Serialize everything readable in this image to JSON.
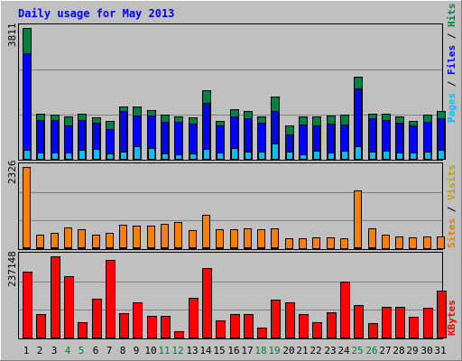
{
  "chart_data": [
    {
      "type": "bar",
      "title": "Daily usage for May 2013",
      "categories": [
        "1",
        "2",
        "3",
        "4",
        "5",
        "6",
        "7",
        "8",
        "9",
        "10",
        "11",
        "12",
        "13",
        "14",
        "15",
        "16",
        "17",
        "18",
        "19",
        "20",
        "21",
        "22",
        "23",
        "24",
        "25",
        "26",
        "27",
        "28",
        "29",
        "30",
        "31"
      ],
      "weekend_days": [
        "4",
        "5",
        "11",
        "12",
        "18",
        "19",
        "25",
        "26"
      ],
      "ymax_label": "3811",
      "ymax": 3811,
      "side_label": [
        "Pages",
        "Files",
        "Hits"
      ],
      "series": [
        {
          "name": "Hits",
          "color": "#008040",
          "values": [
            3811,
            1330,
            1300,
            1260,
            1340,
            1220,
            1130,
            1530,
            1540,
            1430,
            1300,
            1240,
            1220,
            2000,
            1130,
            1450,
            1420,
            1260,
            1840,
            1000,
            1260,
            1250,
            1290,
            1300,
            2400,
            1320,
            1340,
            1260,
            1120,
            1300,
            1420
          ]
        },
        {
          "name": "Files",
          "color": "#0000ff",
          "values": [
            3070,
            1140,
            1150,
            1000,
            1150,
            1070,
            880,
            1400,
            1280,
            1290,
            1100,
            1100,
            1040,
            1650,
            1000,
            1260,
            1200,
            1080,
            1420,
            730,
            1020,
            1000,
            1050,
            1030,
            2050,
            1200,
            1140,
            1080,
            1000,
            1100,
            1200
          ]
        },
        {
          "name": "Pages",
          "color": "#00c0ff",
          "values": [
            300,
            200,
            220,
            220,
            290,
            310,
            170,
            240,
            380,
            330,
            190,
            150,
            190,
            320,
            220,
            350,
            240,
            230,
            470,
            240,
            160,
            250,
            200,
            250,
            380,
            230,
            250,
            210,
            200,
            230,
            280
          ]
        }
      ]
    },
    {
      "type": "bar",
      "categories": [
        "1",
        "2",
        "3",
        "4",
        "5",
        "6",
        "7",
        "8",
        "9",
        "10",
        "11",
        "12",
        "13",
        "14",
        "15",
        "16",
        "17",
        "18",
        "19",
        "20",
        "21",
        "22",
        "23",
        "24",
        "25",
        "26",
        "27",
        "28",
        "29",
        "30",
        "31"
      ],
      "ymax_label": "2326",
      "ymax": 2326,
      "side_label": [
        "Sites",
        "Visits"
      ],
      "series": [
        {
          "name": "Visits",
          "color": "#ff8000",
          "values": [
            2326,
            420,
            470,
            620,
            570,
            410,
            450,
            680,
            670,
            660,
            720,
            760,
            540,
            960,
            560,
            570,
            590,
            550,
            590,
            300,
            310,
            320,
            320,
            310,
            1660,
            580,
            400,
            360,
            340,
            350,
            360
          ]
        },
        {
          "name": "Sites",
          "color": "#ffff00",
          "values": [
            60,
            40,
            40,
            50,
            40,
            40,
            40,
            50,
            50,
            40,
            40,
            40,
            40,
            50,
            40,
            40,
            40,
            40,
            40,
            30,
            30,
            30,
            30,
            30,
            40,
            40,
            30,
            30,
            30,
            30,
            30
          ]
        }
      ]
    },
    {
      "type": "bar",
      "categories": [
        "1",
        "2",
        "3",
        "4",
        "5",
        "6",
        "7",
        "8",
        "9",
        "10",
        "11",
        "12",
        "13",
        "14",
        "15",
        "16",
        "17",
        "18",
        "19",
        "20",
        "21",
        "22",
        "23",
        "24",
        "25",
        "26",
        "27",
        "28",
        "29",
        "30",
        "31"
      ],
      "ymax_label": "237148",
      "ymax": 237148,
      "side_label": [
        "KBytes"
      ],
      "series": [
        {
          "name": "KBytes",
          "color": "#ff0000",
          "values": [
            193000,
            71000,
            237148,
            179000,
            47000,
            115000,
            228000,
            73000,
            105000,
            65000,
            65000,
            22000,
            118000,
            202000,
            51000,
            71000,
            71000,
            30000,
            112000,
            104000,
            70000,
            46000,
            76000,
            164000,
            97000,
            44000,
            90000,
            90000,
            62000,
            89000,
            137000
          ]
        }
      ]
    }
  ]
}
